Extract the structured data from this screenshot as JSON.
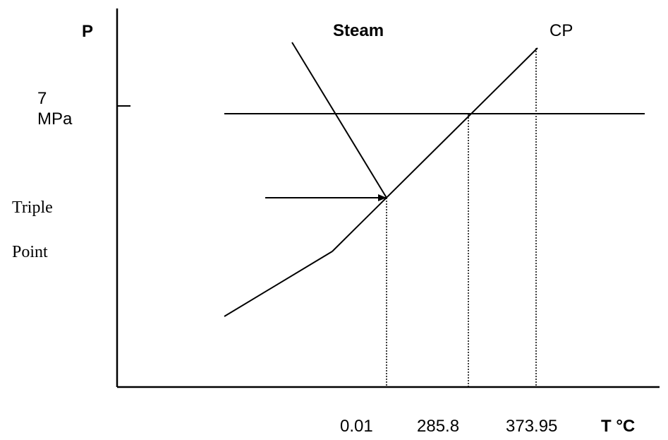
{
  "axes": {
    "y_label": "P",
    "x_label": "T °C",
    "pressure_tick_value": "7",
    "pressure_tick_unit": "MPa"
  },
  "labels": {
    "steam": "Steam",
    "critical_point": "CP",
    "triple_point_line1": "Triple",
    "triple_point_line2": "Point"
  },
  "temperature_ticks": [
    "0.01",
    "285.8",
    "373.95"
  ]
}
